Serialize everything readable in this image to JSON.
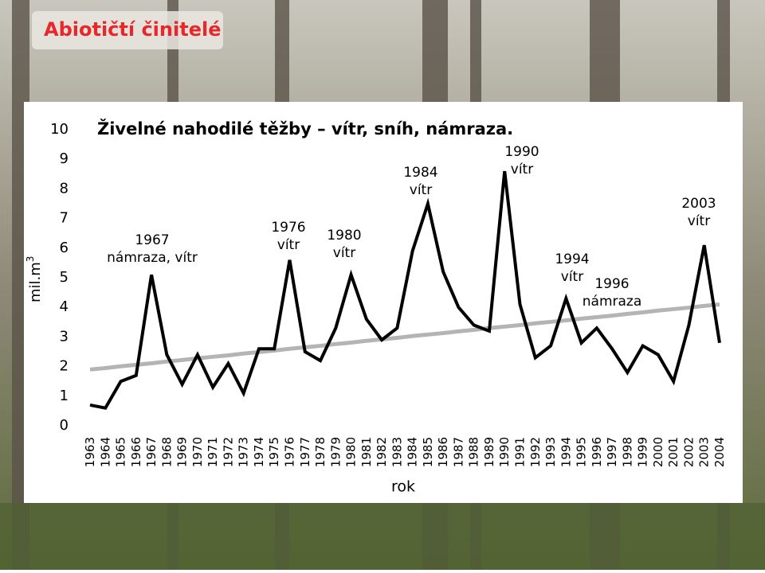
{
  "slide_title": "Abiotičtí činitelé",
  "chart_data": {
    "type": "line",
    "title": "Živelné nahodilé těžby – vítr, sníh, námraza.",
    "y_label": "mil.m",
    "y_label_sup": "3",
    "x_label": "rok",
    "categories": [
      "1963",
      "1964",
      "1965",
      "1966",
      "1967",
      "1968",
      "1969",
      "1970",
      "1971",
      "1972",
      "1973",
      "1974",
      "1975",
      "1976",
      "1977",
      "1978",
      "1979",
      "1980",
      "1981",
      "1982",
      "1983",
      "1984",
      "1985",
      "1986",
      "1987",
      "1988",
      "1989",
      "1990",
      "1991",
      "1992",
      "1993",
      "1994",
      "1995",
      "1996",
      "1997",
      "1998",
      "1999",
      "2000",
      "2001",
      "2002",
      "2003",
      "2004"
    ],
    "series": [
      {
        "color": "#000000",
        "values": [
          0.7,
          0.6,
          1.5,
          1.7,
          5.1,
          2.4,
          1.4,
          2.4,
          1.3,
          2.1,
          1.1,
          2.6,
          2.6,
          5.6,
          2.5,
          2.2,
          3.3,
          5.1,
          3.6,
          2.9,
          3.3,
          5.9,
          7.5,
          5.2,
          4.0,
          3.4,
          3.2,
          8.6,
          4.1,
          2.3,
          2.7,
          4.3,
          2.8,
          3.3,
          2.6,
          1.8,
          2.7,
          2.4,
          1.5,
          3.4,
          6.1,
          2.8
        ]
      },
      {
        "color": "#b4b4b4",
        "values": [
          1.9,
          1.95,
          2.01,
          2.06,
          2.11,
          2.17,
          2.22,
          2.28,
          2.33,
          2.38,
          2.44,
          2.49,
          2.54,
          2.6,
          2.65,
          2.7,
          2.76,
          2.81,
          2.87,
          2.92,
          2.97,
          3.03,
          3.08,
          3.13,
          3.19,
          3.24,
          3.3,
          3.35,
          3.4,
          3.46,
          3.51,
          3.56,
          3.62,
          3.67,
          3.72,
          3.78,
          3.83,
          3.89,
          3.94,
          3.99,
          4.05,
          4.1
        ]
      }
    ],
    "ylim": [
      0,
      10
    ],
    "yticks": [
      0,
      1,
      2,
      3,
      4,
      5,
      6,
      7,
      8,
      9,
      10
    ],
    "grid": false,
    "annotations": [
      [
        "1967",
        "námraza, vítr"
      ],
      [
        "1976",
        "vítr"
      ],
      [
        "1980",
        "vítr"
      ],
      [
        "1984",
        "vítr"
      ],
      [
        "1990",
        "vítr"
      ],
      [
        "1994",
        "vítr"
      ],
      [
        "1996",
        "námraza"
      ],
      [
        "2003",
        "vítr"
      ]
    ]
  }
}
